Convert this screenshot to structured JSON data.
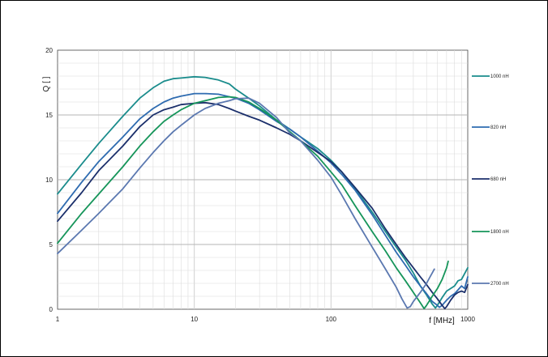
{
  "chart_data": {
    "type": "line",
    "title": "",
    "xlabel": "f [MHz]",
    "ylabel": "Q [ ]",
    "x_scale": "log",
    "xlim": [
      1,
      1000
    ],
    "ylim": [
      0,
      20
    ],
    "x_ticks": [
      "1",
      "10",
      "100",
      "1000"
    ],
    "y_ticks": [
      "0",
      "5",
      "10",
      "15",
      "20"
    ],
    "grid": true,
    "legend_position": "right",
    "series": [
      {
        "name": "1000 nH",
        "color": "#1a8c8c",
        "points": [
          [
            1,
            8.9
          ],
          [
            1.5,
            11.2
          ],
          [
            2,
            12.8
          ],
          [
            3,
            14.9
          ],
          [
            4,
            16.3
          ],
          [
            5,
            17.1
          ],
          [
            6,
            17.6
          ],
          [
            7,
            17.8
          ],
          [
            8,
            17.85
          ],
          [
            10,
            17.95
          ],
          [
            12,
            17.9
          ],
          [
            15,
            17.7
          ],
          [
            18,
            17.4
          ],
          [
            20,
            17.0
          ],
          [
            25,
            16.3
          ],
          [
            30,
            15.7
          ],
          [
            40,
            14.6
          ],
          [
            50,
            13.9
          ],
          [
            60,
            13.3
          ],
          [
            80,
            12.4
          ],
          [
            100,
            11.5
          ],
          [
            120,
            10.6
          ],
          [
            150,
            9.3
          ],
          [
            200,
            7.5
          ],
          [
            250,
            6.0
          ],
          [
            300,
            4.8
          ],
          [
            350,
            3.8
          ],
          [
            400,
            2.8
          ],
          [
            450,
            1.8
          ],
          [
            500,
            1.1
          ],
          [
            550,
            0.4
          ],
          [
            580,
            0.1
          ],
          [
            600,
            0.3
          ],
          [
            650,
            0.9
          ],
          [
            700,
            1.4
          ],
          [
            750,
            1.6
          ],
          [
            800,
            1.8
          ],
          [
            850,
            2.2
          ],
          [
            900,
            2.3
          ],
          [
            1000,
            3.2
          ]
        ]
      },
      {
        "name": "820 nH",
        "color": "#2e6bb0",
        "points": [
          [
            1,
            7.4
          ],
          [
            1.5,
            9.8
          ],
          [
            2,
            11.4
          ],
          [
            3,
            13.3
          ],
          [
            4,
            14.7
          ],
          [
            5,
            15.5
          ],
          [
            6,
            16.0
          ],
          [
            7,
            16.3
          ],
          [
            8,
            16.45
          ],
          [
            10,
            16.65
          ],
          [
            12,
            16.65
          ],
          [
            15,
            16.6
          ],
          [
            20,
            16.3
          ],
          [
            25,
            15.9
          ],
          [
            30,
            15.4
          ],
          [
            40,
            14.5
          ],
          [
            50,
            13.9
          ],
          [
            60,
            13.3
          ],
          [
            80,
            12.2
          ],
          [
            100,
            11.3
          ],
          [
            120,
            10.4
          ],
          [
            150,
            9.2
          ],
          [
            200,
            7.3
          ],
          [
            250,
            5.7
          ],
          [
            300,
            4.4
          ],
          [
            350,
            3.4
          ],
          [
            400,
            2.5
          ],
          [
            450,
            1.8
          ],
          [
            500,
            1.2
          ],
          [
            550,
            0.6
          ],
          [
            600,
            0.3
          ],
          [
            620,
            0.15
          ],
          [
            650,
            0.3
          ],
          [
            700,
            0.7
          ],
          [
            750,
            1.0
          ],
          [
            800,
            1.2
          ],
          [
            850,
            1.5
          ],
          [
            900,
            1.8
          ],
          [
            950,
            1.6
          ],
          [
            1000,
            2.5
          ]
        ]
      },
      {
        "name": "680 nH",
        "color": "#1b2f6b",
        "points": [
          [
            1,
            6.8
          ],
          [
            1.5,
            9.0
          ],
          [
            2,
            10.7
          ],
          [
            3,
            12.6
          ],
          [
            4,
            14.1
          ],
          [
            5,
            15.0
          ],
          [
            6,
            15.4
          ],
          [
            7,
            15.6
          ],
          [
            8,
            15.8
          ],
          [
            10,
            15.9
          ],
          [
            12,
            15.95
          ],
          [
            15,
            15.8
          ],
          [
            18,
            15.5
          ],
          [
            20,
            15.3
          ],
          [
            25,
            14.9
          ],
          [
            30,
            14.6
          ],
          [
            40,
            14.0
          ],
          [
            50,
            13.5
          ],
          [
            60,
            13.0
          ],
          [
            80,
            12.1
          ],
          [
            100,
            11.4
          ],
          [
            120,
            10.6
          ],
          [
            150,
            9.4
          ],
          [
            200,
            7.8
          ],
          [
            250,
            6.2
          ],
          [
            300,
            5.0
          ],
          [
            350,
            4.0
          ],
          [
            400,
            3.2
          ],
          [
            450,
            2.5
          ],
          [
            500,
            1.9
          ],
          [
            550,
            1.3
          ],
          [
            600,
            0.8
          ],
          [
            650,
            0.3
          ],
          [
            680,
            0.05
          ],
          [
            700,
            0.2
          ],
          [
            750,
            0.7
          ],
          [
            800,
            1.1
          ],
          [
            850,
            1.3
          ],
          [
            900,
            1.4
          ],
          [
            950,
            1.3
          ],
          [
            1000,
            1.9
          ]
        ]
      },
      {
        "name": "1800 nH",
        "color": "#16955a",
        "points": [
          [
            1,
            5.1
          ],
          [
            1.5,
            7.4
          ],
          [
            2,
            8.9
          ],
          [
            3,
            11.0
          ],
          [
            4,
            12.6
          ],
          [
            5,
            13.7
          ],
          [
            6,
            14.5
          ],
          [
            7,
            15.0
          ],
          [
            8,
            15.4
          ],
          [
            10,
            15.9
          ],
          [
            12,
            16.1
          ],
          [
            15,
            16.35
          ],
          [
            18,
            16.4
          ],
          [
            20,
            16.35
          ],
          [
            25,
            16.0
          ],
          [
            30,
            15.5
          ],
          [
            40,
            14.6
          ],
          [
            50,
            13.7
          ],
          [
            60,
            13.0
          ],
          [
            80,
            11.8
          ],
          [
            100,
            10.6
          ],
          [
            120,
            9.6
          ],
          [
            150,
            8.0
          ],
          [
            200,
            6.0
          ],
          [
            250,
            4.5
          ],
          [
            300,
            3.2
          ],
          [
            350,
            2.2
          ],
          [
            400,
            1.3
          ],
          [
            450,
            0.5
          ],
          [
            480,
            0.05
          ],
          [
            500,
            0.3
          ],
          [
            550,
            1.0
          ],
          [
            600,
            1.6
          ],
          [
            650,
            2.3
          ],
          [
            700,
            3.2
          ],
          [
            720,
            3.7
          ]
        ]
      },
      {
        "name": "2700 nH",
        "color": "#5b78b0",
        "points": [
          [
            1,
            4.3
          ],
          [
            1.5,
            6.1
          ],
          [
            2,
            7.4
          ],
          [
            3,
            9.3
          ],
          [
            4,
            10.9
          ],
          [
            5,
            12.1
          ],
          [
            6,
            13.0
          ],
          [
            7,
            13.7
          ],
          [
            8,
            14.2
          ],
          [
            10,
            15.0
          ],
          [
            12,
            15.5
          ],
          [
            15,
            15.9
          ],
          [
            18,
            16.1
          ],
          [
            20,
            16.25
          ],
          [
            25,
            16.3
          ],
          [
            30,
            15.9
          ],
          [
            40,
            14.8
          ],
          [
            50,
            13.6
          ],
          [
            60,
            13.0
          ],
          [
            80,
            11.5
          ],
          [
            100,
            10.2
          ],
          [
            120,
            8.8
          ],
          [
            150,
            7.0
          ],
          [
            200,
            4.8
          ],
          [
            250,
            3.1
          ],
          [
            300,
            1.7
          ],
          [
            330,
            0.8
          ],
          [
            360,
            0.1
          ],
          [
            380,
            0.2
          ],
          [
            400,
            0.6
          ],
          [
            450,
            1.3
          ],
          [
            500,
            2.0
          ],
          [
            530,
            2.5
          ],
          [
            550,
            2.8
          ],
          [
            570,
            3.1
          ]
        ]
      }
    ]
  }
}
